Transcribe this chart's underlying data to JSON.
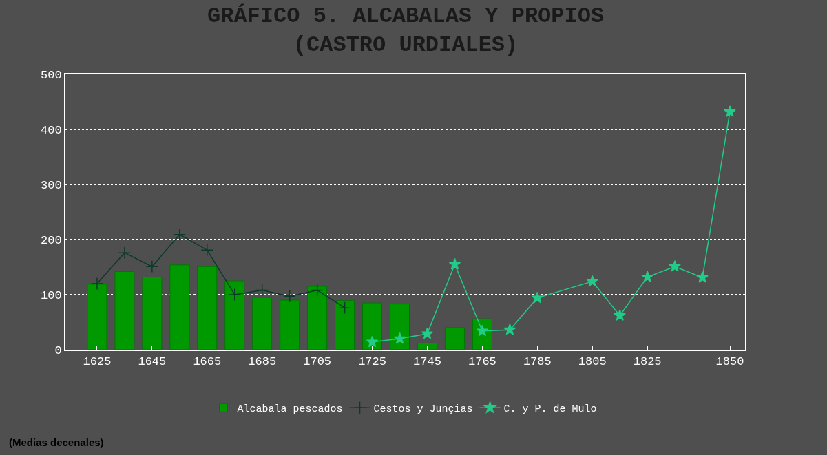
{
  "chart_data": {
    "type": "bar",
    "title": "GRÁFICO 5. ALCABALAS Y PROPIOS\n(CASTRO URDIALES)",
    "categories": [
      "1625",
      null,
      "1645",
      null,
      "1665",
      null,
      "1685",
      null,
      "1705",
      null,
      "1725",
      null,
      "1745",
      null,
      "1765",
      null,
      "1785",
      null,
      "1805",
      null,
      "1825",
      null,
      null,
      "1850"
    ],
    "series": [
      {
        "name": "Alcabala pescados",
        "color": "#009900",
        "values": [
          119,
          142,
          132,
          154,
          151,
          125,
          95,
          90,
          115,
          89,
          85,
          83,
          12,
          40,
          56,
          null,
          null,
          null,
          null,
          null,
          null,
          null,
          null,
          null
        ]
      },
      {
        "name": "Cestos y Junçias",
        "type": "line",
        "color": "#0a3a2a",
        "marker": "cross",
        "values": [
          120,
          176,
          151,
          209,
          181,
          100,
          108,
          97,
          108,
          76,
          null,
          null,
          null,
          null,
          null,
          null,
          null,
          null,
          null,
          null,
          null,
          null,
          null,
          null
        ]
      },
      {
        "name": "C. y P. de Mulo",
        "type": "line",
        "color": "#22cc88",
        "marker": "star",
        "values": [
          null,
          null,
          null,
          null,
          null,
          null,
          null,
          null,
          null,
          null,
          14,
          20,
          29,
          155,
          34,
          36,
          94,
          null,
          124,
          62,
          132,
          151,
          131,
          432
        ]
      }
    ],
    "ylim": [
      0,
      500
    ],
    "yticks": [
      0,
      100,
      200,
      300,
      400,
      500
    ],
    "grid": "y",
    "legend": "bottom",
    "annotations": [
      "(Medias decenales)"
    ]
  }
}
